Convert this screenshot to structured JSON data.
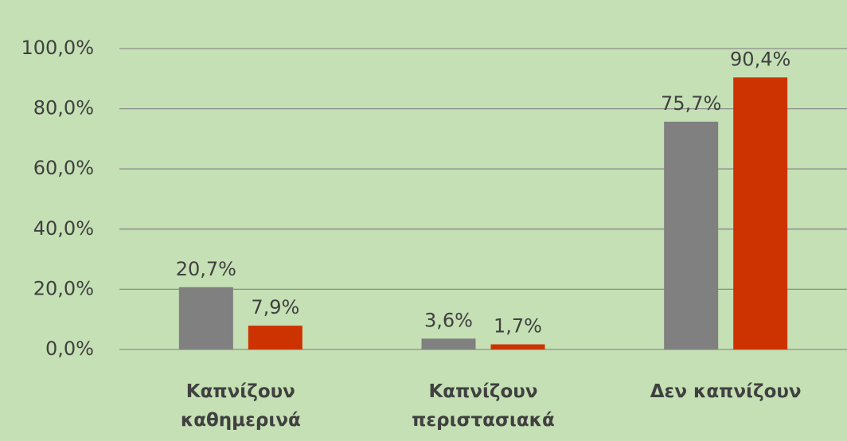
{
  "chart_data": {
    "type": "bar",
    "categories": [
      "Καπνίζουν καθημερινά",
      "Καπνίζουν περιστασιακά",
      "Δεν καπνίζουν"
    ],
    "series": [
      {
        "color": "#808080",
        "values": [
          20.7,
          3.6,
          75.7
        ],
        "value_labels": [
          "20,7%",
          "3,6%",
          "75,7%"
        ]
      },
      {
        "color": "#cc3300",
        "values": [
          7.9,
          1.7,
          90.4
        ],
        "value_labels": [
          "7,9%",
          "1,7%",
          "90,4%"
        ]
      }
    ],
    "ylim": [
      0,
      100
    ],
    "yticks": [
      {
        "value": 0,
        "label": "0,0%"
      },
      {
        "value": 20,
        "label": "20,0%"
      },
      {
        "value": 40,
        "label": "40,0%"
      },
      {
        "value": 60,
        "label": "60,0%"
      },
      {
        "value": 80,
        "label": "80,0%"
      },
      {
        "value": 100,
        "label": "100,0%"
      }
    ],
    "grid": true
  }
}
